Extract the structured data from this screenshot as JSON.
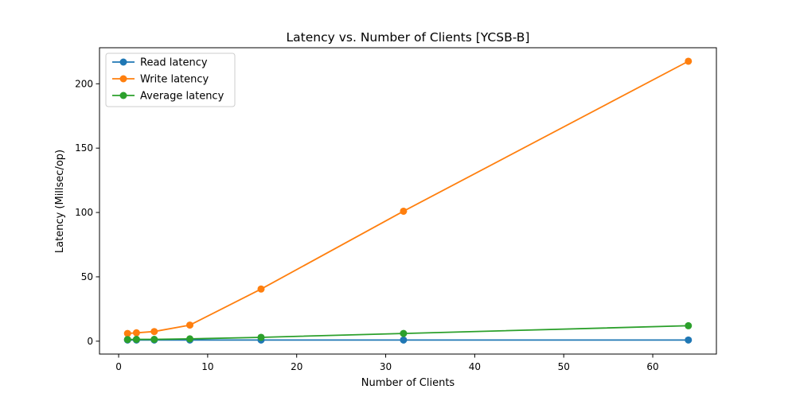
{
  "chart_data": {
    "type": "line",
    "title": "Latency vs. Number of Clients [YCSB-B]",
    "xlabel": "Number of Clients",
    "ylabel": "Latency (Millsec/op)",
    "x": [
      1,
      2,
      4,
      8,
      16,
      32,
      64
    ],
    "xlim": [
      -2.15,
      67.15
    ],
    "ylim": [
      -10,
      228
    ],
    "xticks": [
      0,
      10,
      20,
      30,
      40,
      50,
      60
    ],
    "yticks": [
      0,
      50,
      100,
      150,
      200
    ],
    "grid": false,
    "legend_position": "top-left",
    "series": [
      {
        "name": "Read latency",
        "color": "#1f77b4",
        "marker": "circle",
        "values": [
          0.9,
          0.9,
          0.9,
          0.9,
          0.9,
          0.9,
          0.9
        ]
      },
      {
        "name": "Write latency",
        "color": "#ff7f0e",
        "marker": "circle",
        "values": [
          6.0,
          6.5,
          7.5,
          12.5,
          40.5,
          101.0,
          217.5
        ]
      },
      {
        "name": "Average latency",
        "color": "#2ca02c",
        "marker": "circle",
        "values": [
          1.3,
          1.4,
          1.4,
          1.8,
          3.0,
          6.0,
          12.0
        ]
      }
    ]
  }
}
